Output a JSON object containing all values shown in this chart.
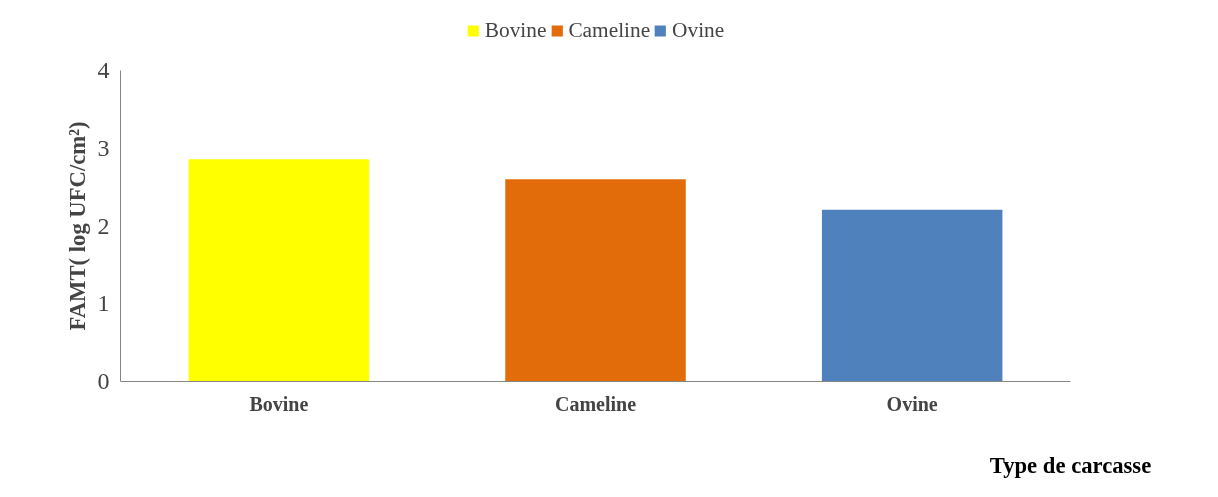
{
  "chart_data": {
    "type": "bar",
    "xlabel": "Type de carcasse",
    "ylabel": "FAMT( log UFC/cm²)",
    "categories": [
      "Bovine",
      "Cameline",
      "Ovine"
    ],
    "series": [
      {
        "name": "Bovine",
        "color": "#ffff00",
        "values": [
          2.86,
          null,
          null
        ]
      },
      {
        "name": "Cameline",
        "color": "#e36c0a",
        "values": [
          null,
          2.6,
          null
        ]
      },
      {
        "name": "Ovine",
        "color": "#4f81bd",
        "values": [
          null,
          null,
          2.21
        ]
      }
    ],
    "ylim": [
      0,
      4
    ],
    "yticks": [
      0,
      1,
      2,
      3,
      4
    ],
    "grid": false,
    "legend": "top"
  }
}
